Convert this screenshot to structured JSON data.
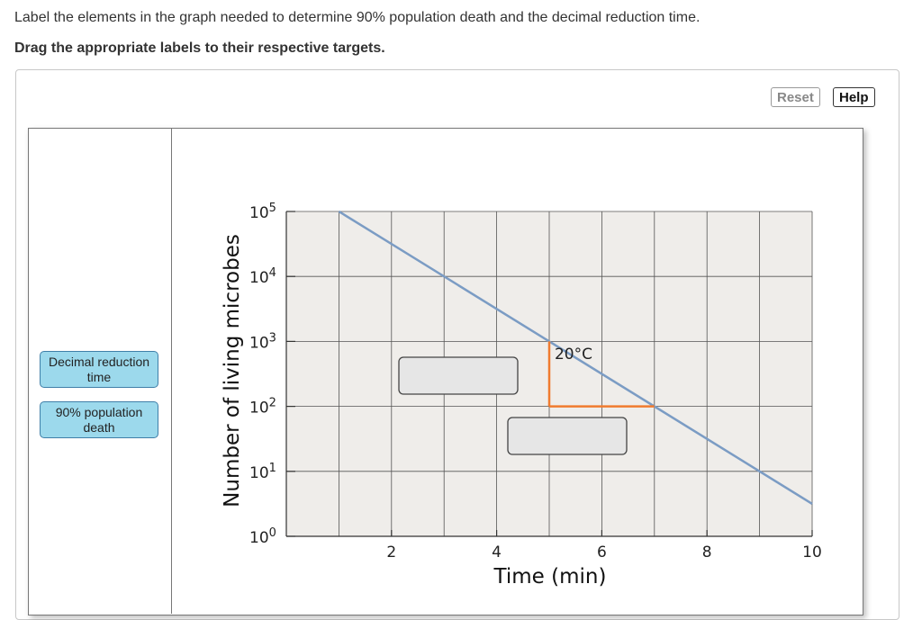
{
  "instructions": {
    "text": "Label the elements in the graph needed to determine 90% population death and the decimal reduction time.",
    "bold": "Drag the appropriate labels to their respective targets."
  },
  "toolbar": {
    "reset_label": "Reset",
    "help_label": "Help"
  },
  "labels": [
    {
      "line1": "Decimal reduction",
      "line2": "time"
    },
    {
      "line1": "90% population",
      "line2": "death"
    }
  ],
  "chart_data": {
    "type": "line",
    "xlabel": "Time (min)",
    "ylabel": "Number of living microbes",
    "x_ticks": [
      "2",
      "4",
      "6",
      "8",
      "10"
    ],
    "y_ticks": [
      {
        "base": "10",
        "exp": "0"
      },
      {
        "base": "10",
        "exp": "1"
      },
      {
        "base": "10",
        "exp": "2"
      },
      {
        "base": "10",
        "exp": "3"
      },
      {
        "base": "10",
        "exp": "4"
      },
      {
        "base": "10",
        "exp": "5"
      }
    ],
    "y_scale": "log",
    "xlim": [
      0,
      10
    ],
    "ylim_exp": [
      0,
      5
    ],
    "series": [
      {
        "x": [
          1,
          10
        ],
        "log10_y": [
          5,
          0.5
        ]
      }
    ],
    "annotation": "20°C",
    "highlight_x": [
      5,
      7
    ],
    "highlight_log10_y": [
      3,
      2
    ],
    "colors": {
      "line": "#7b9cc4",
      "highlight": "#f07b2f",
      "plot_bg": "#efedea",
      "drop_target": "#e6e6e6"
    }
  }
}
